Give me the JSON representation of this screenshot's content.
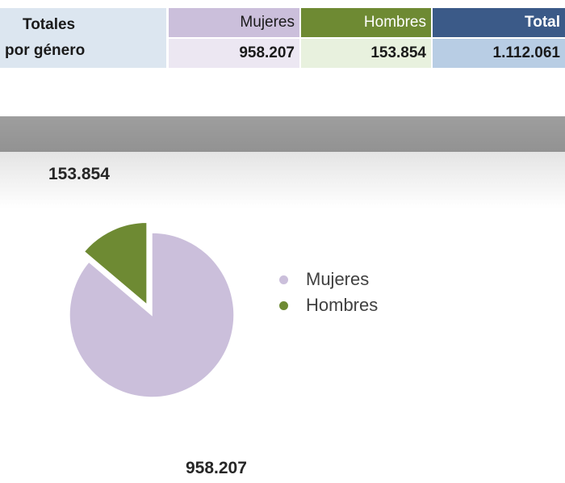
{
  "table": {
    "label_line1": "Totales",
    "label_line2": "por género",
    "headers": [
      "Mujeres",
      "Hombres",
      "Total"
    ],
    "values": [
      "958.207",
      "153.854",
      "1.112.061"
    ]
  },
  "chart_data": {
    "type": "pie",
    "categories": [
      "Mujeres",
      "Hombres"
    ],
    "values": [
      958207,
      153854
    ],
    "data_labels": [
      "958.207",
      "153.854"
    ],
    "colors": [
      "#cbbfdb",
      "#6e8a33"
    ],
    "exploded": [
      "Hombres"
    ],
    "legend_position": "right",
    "title": ""
  },
  "legend": {
    "items": [
      {
        "label": "Mujeres",
        "color": "#cbbfdb"
      },
      {
        "label": "Hombres",
        "color": "#6e8a33"
      }
    ]
  }
}
